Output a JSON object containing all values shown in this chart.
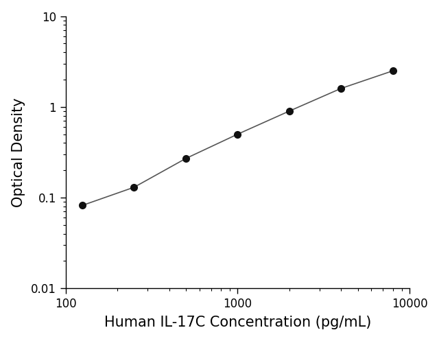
{
  "x": [
    125,
    250,
    500,
    1000,
    2000,
    4000,
    8000
  ],
  "y": [
    0.082,
    0.13,
    0.27,
    0.5,
    0.9,
    1.6,
    2.5
  ],
  "xlim": [
    100,
    10000
  ],
  "ylim": [
    0.01,
    10
  ],
  "xlabel": "Human IL-17C Concentration (pg/mL)",
  "ylabel": "Optical Density",
  "line_color": "#555555",
  "marker_color": "#111111",
  "marker_size": 7,
  "line_width": 1.2,
  "bg_color": "#ffffff",
  "xlabel_fontsize": 15,
  "ylabel_fontsize": 15,
  "tick_fontsize": 12,
  "ytick_labels": [
    "0.01",
    "0.1",
    "1",
    "10"
  ],
  "ytick_vals": [
    0.01,
    0.1,
    1,
    10
  ],
  "xtick_labels": [
    "100",
    "1000",
    "10000"
  ],
  "xtick_vals": [
    100,
    1000,
    10000
  ]
}
